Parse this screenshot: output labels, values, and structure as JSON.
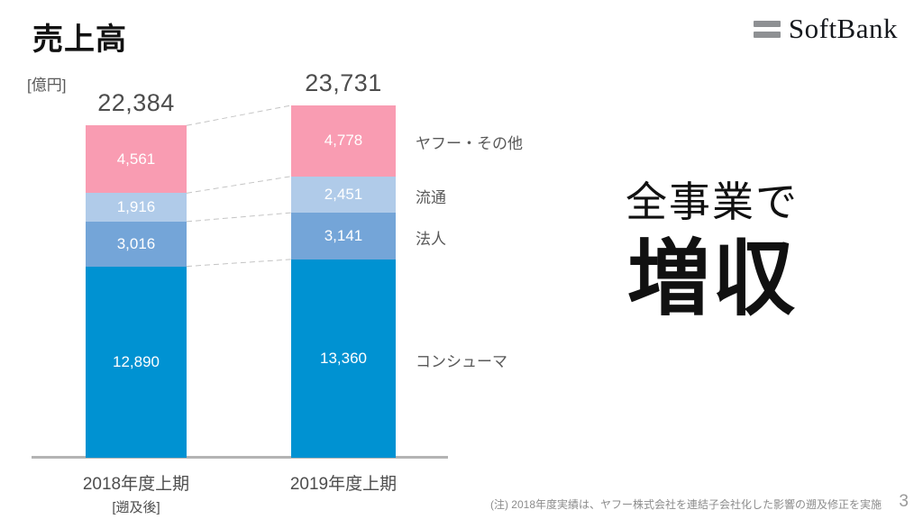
{
  "page": {
    "title": "売上高",
    "unit_label": "[億円]",
    "logo_text": "SoftBank",
    "message_line1": "全事業で",
    "message_line2": "増収",
    "footnote": "(注) 2018年度実績は、ヤフー株式会社を連結子会社化した影響の遡及修正を実施",
    "page_number": "3"
  },
  "chart_data": {
    "type": "bar",
    "stacked": true,
    "title": "売上高",
    "unit": "億円",
    "categories": [
      "2018年度上期",
      "2019年度上期"
    ],
    "category_sublabels": [
      "[遡及後]",
      ""
    ],
    "totals": [
      22384,
      23731
    ],
    "totals_display": [
      "22,384",
      "23,731"
    ],
    "series": [
      {
        "key": "consumer",
        "name": "コンシューマ",
        "values": [
          12890,
          13360
        ],
        "labels": [
          "12,890",
          "13,360"
        ],
        "color": "#0092d2"
      },
      {
        "key": "enterprise",
        "name": "法人",
        "values": [
          3016,
          3141
        ],
        "labels": [
          "3,016",
          "3,141"
        ],
        "color": "#74a5d8"
      },
      {
        "key": "distribution",
        "name": "流通",
        "values": [
          1916,
          2451
        ],
        "labels": [
          "1,916",
          "2,451"
        ],
        "color": "#b0cbe9"
      },
      {
        "key": "yahoo-other",
        "name": "ヤフー・その他",
        "values": [
          4561,
          4778
        ],
        "labels": [
          "4,561",
          "4,778"
        ],
        "color": "#f99cb2"
      }
    ],
    "ylim": [
      0,
      23731
    ],
    "grid": false,
    "legend_position": "right-of-second-bar"
  }
}
